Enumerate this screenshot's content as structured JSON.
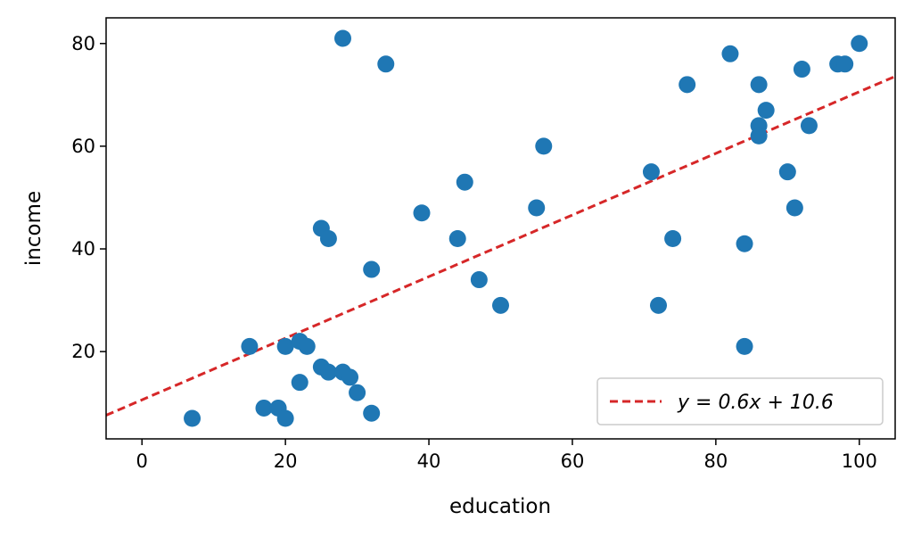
{
  "chart_data": {
    "type": "scatter",
    "title": "",
    "xlabel": "education",
    "ylabel": "income",
    "xlim": [
      -5,
      105
    ],
    "ylim": [
      3,
      85
    ],
    "x_ticks": [
      0,
      20,
      40,
      60,
      80,
      100
    ],
    "y_ticks": [
      20,
      40,
      60,
      80
    ],
    "grid": false,
    "point_color": "#1f77b4",
    "fit_line_color": "#d62728",
    "points": [
      {
        "x": 7,
        "y": 7
      },
      {
        "x": 15,
        "y": 21
      },
      {
        "x": 17,
        "y": 9
      },
      {
        "x": 19,
        "y": 9
      },
      {
        "x": 20,
        "y": 7
      },
      {
        "x": 20,
        "y": 21
      },
      {
        "x": 22,
        "y": 22
      },
      {
        "x": 23,
        "y": 21
      },
      {
        "x": 22,
        "y": 14
      },
      {
        "x": 25,
        "y": 17
      },
      {
        "x": 26,
        "y": 16
      },
      {
        "x": 28,
        "y": 16
      },
      {
        "x": 29,
        "y": 15
      },
      {
        "x": 30,
        "y": 12
      },
      {
        "x": 32,
        "y": 8
      },
      {
        "x": 25,
        "y": 44
      },
      {
        "x": 26,
        "y": 42
      },
      {
        "x": 32,
        "y": 36
      },
      {
        "x": 28,
        "y": 81
      },
      {
        "x": 34,
        "y": 76
      },
      {
        "x": 39,
        "y": 47
      },
      {
        "x": 44,
        "y": 42
      },
      {
        "x": 45,
        "y": 53
      },
      {
        "x": 47,
        "y": 34
      },
      {
        "x": 50,
        "y": 29
      },
      {
        "x": 55,
        "y": 48
      },
      {
        "x": 56,
        "y": 60
      },
      {
        "x": 71,
        "y": 55
      },
      {
        "x": 72,
        "y": 29
      },
      {
        "x": 74,
        "y": 42
      },
      {
        "x": 76,
        "y": 72
      },
      {
        "x": 82,
        "y": 78
      },
      {
        "x": 84,
        "y": 41
      },
      {
        "x": 84,
        "y": 21
      },
      {
        "x": 86,
        "y": 72
      },
      {
        "x": 86,
        "y": 64
      },
      {
        "x": 86,
        "y": 62
      },
      {
        "x": 87,
        "y": 67
      },
      {
        "x": 90,
        "y": 55
      },
      {
        "x": 91,
        "y": 48
      },
      {
        "x": 92,
        "y": 75
      },
      {
        "x": 93,
        "y": 64
      },
      {
        "x": 97,
        "y": 76
      },
      {
        "x": 98,
        "y": 76
      },
      {
        "x": 100,
        "y": 80
      }
    ],
    "fit_line": {
      "slope": 0.6,
      "intercept": 10.6
    },
    "legend": {
      "placement": "lower-right",
      "entries": [
        {
          "label": "y = 0.6x + 10.6",
          "style": "dashed"
        }
      ]
    }
  }
}
